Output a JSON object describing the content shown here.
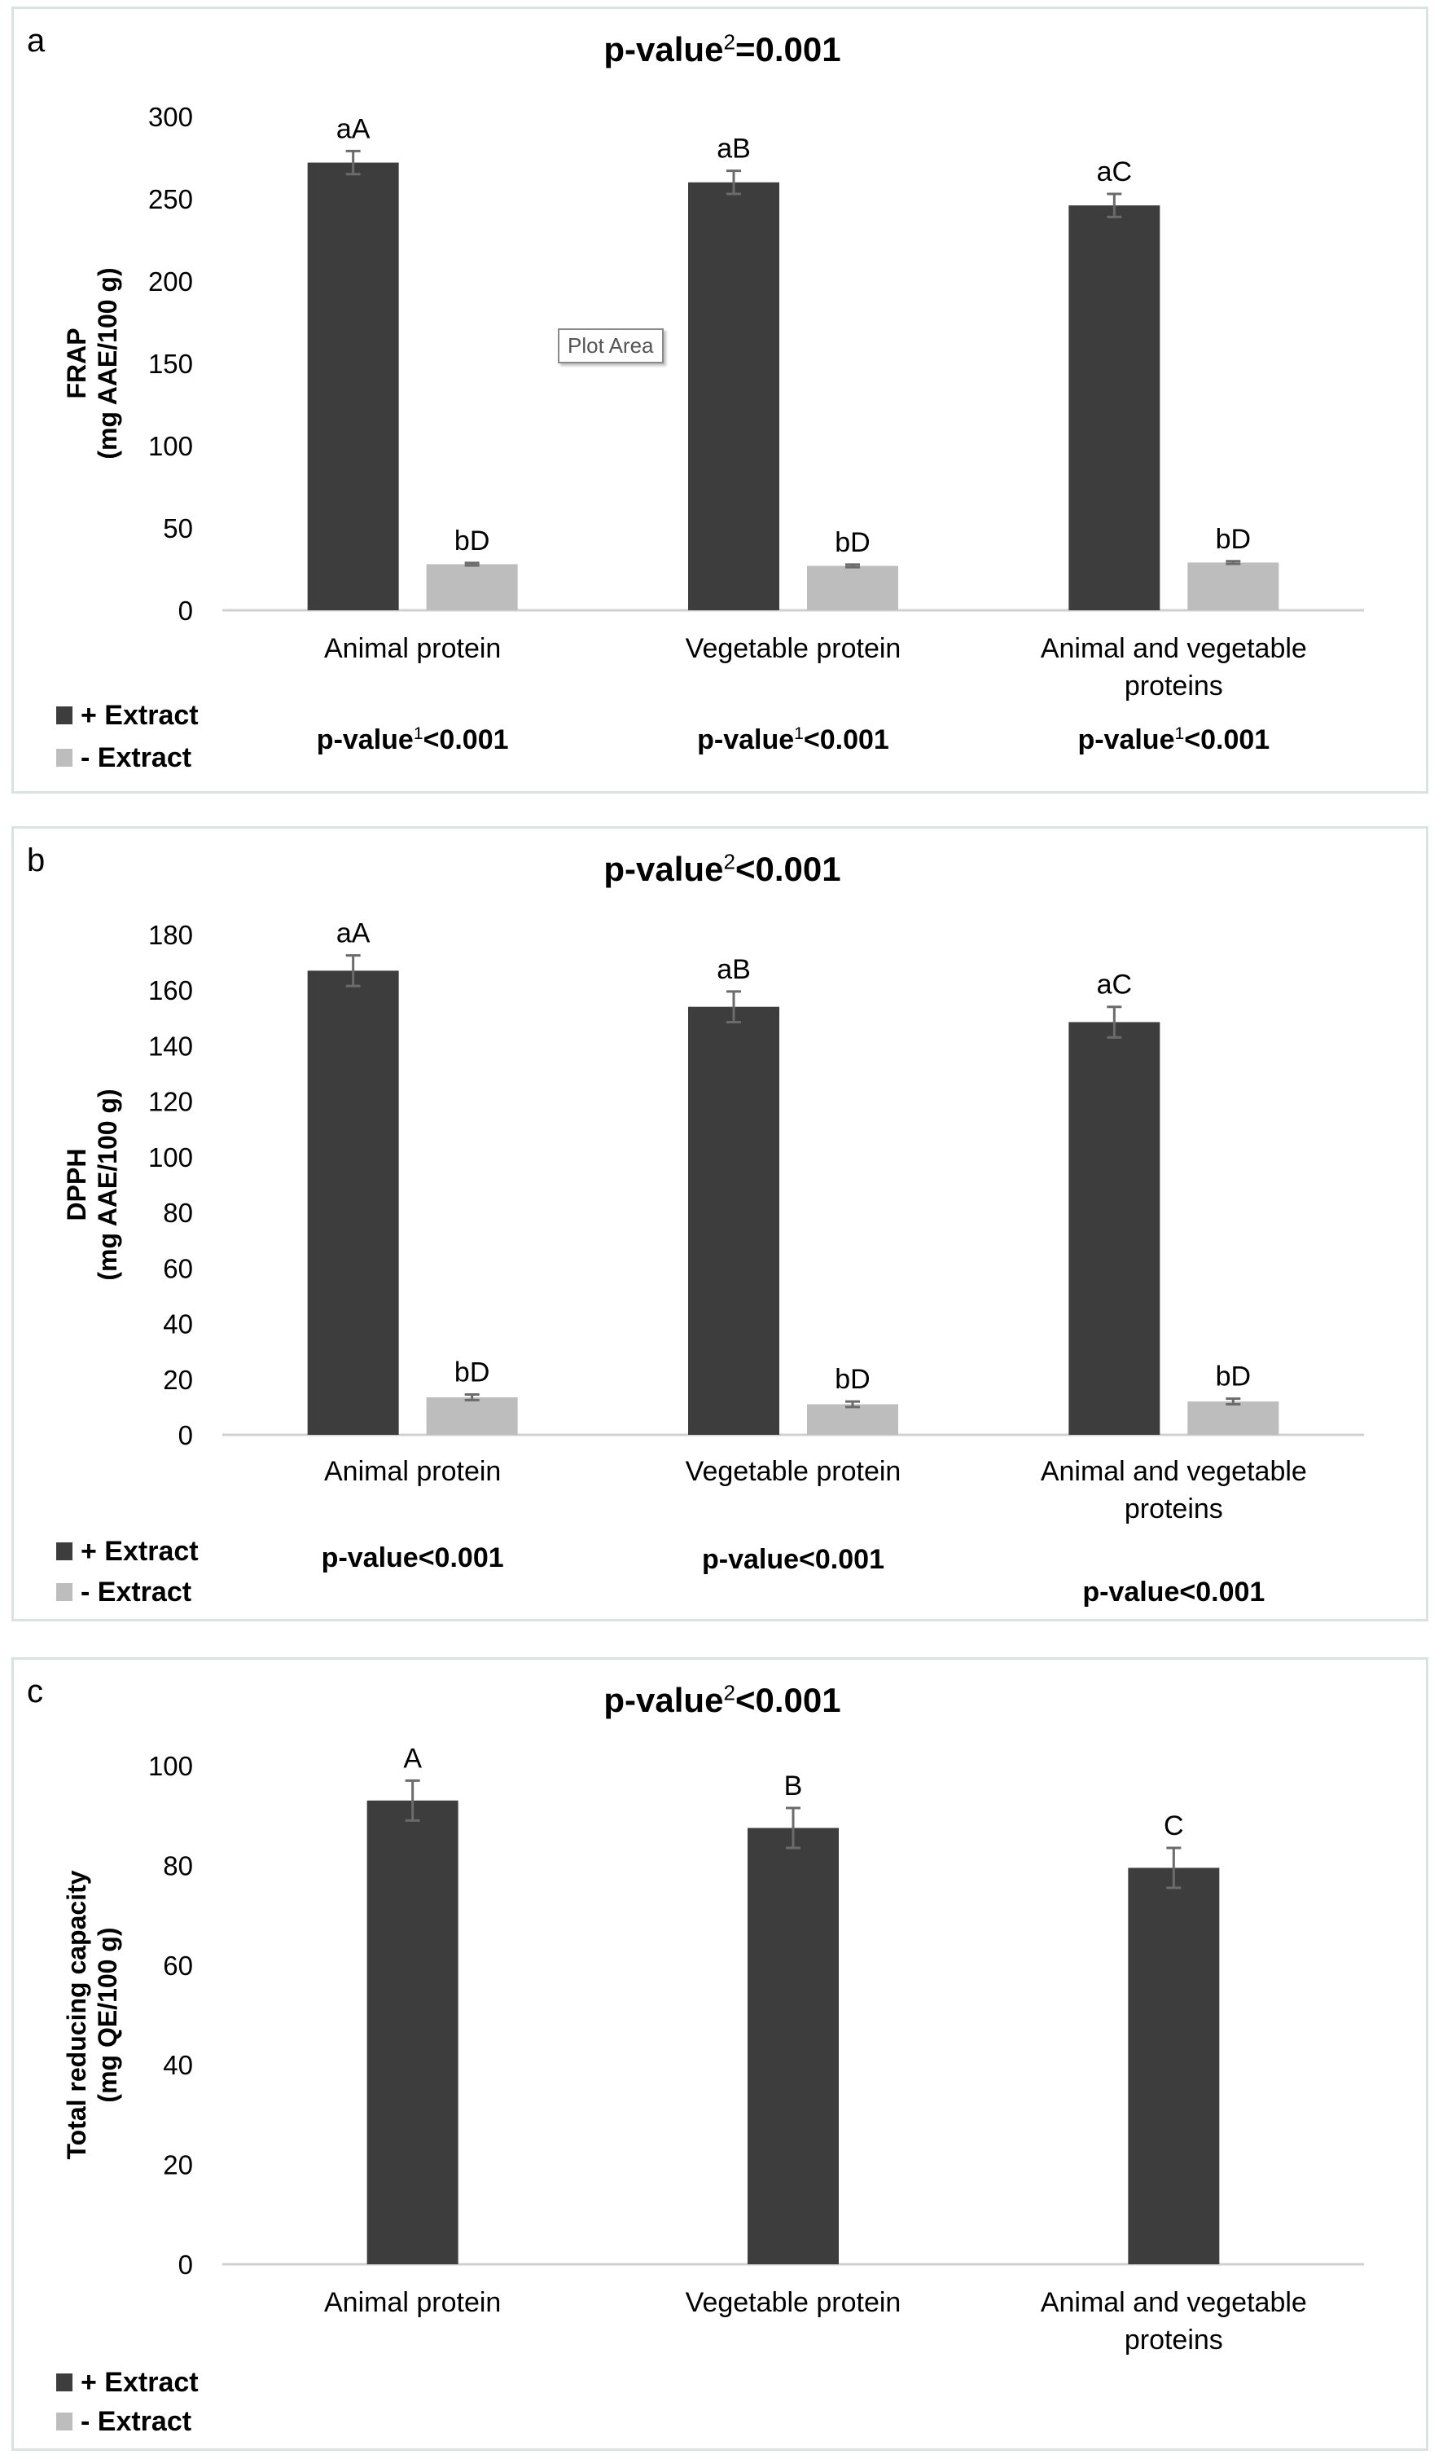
{
  "colors": {
    "extract_plus": "#3d3d3d",
    "extract_minus": "#bdbdbd",
    "error_bar": "#6b6b6b",
    "axis": "#d0d0d0",
    "border": "#d9e4e2"
  },
  "legend": {
    "plus": "+ Extract",
    "minus": "- Extract"
  },
  "tooltip": "Plot Area",
  "chart_data": [
    {
      "panel_label": "a",
      "type": "bar",
      "title_prefix": "p-value",
      "title_sup": "2",
      "title_suffix": "=0.001",
      "ylabel_line1": "FRAP",
      "ylabel_line2": "(mg AAE/100 g)",
      "ylim": [
        0,
        300
      ],
      "yticks": [
        0,
        50,
        100,
        150,
        200,
        250,
        300
      ],
      "categories": [
        [
          "Animal protein"
        ],
        [
          "Vegetable protein"
        ],
        [
          "Animal and vegetable",
          "proteins"
        ]
      ],
      "series": [
        {
          "key": "plus",
          "values": [
            272,
            260,
            246
          ],
          "errors": [
            7,
            7,
            7
          ],
          "labels": [
            "aA",
            "aB",
            "aC"
          ]
        },
        {
          "key": "minus",
          "values": [
            28,
            27,
            29
          ],
          "errors": [
            0.8,
            0.8,
            0.8
          ],
          "labels": [
            "bD",
            "bD",
            "bD"
          ]
        }
      ],
      "pvalues": [
        {
          "prefix": "p-value",
          "sup": "1",
          "suffix": "<0.001"
        },
        {
          "prefix": "p-value",
          "sup": "1",
          "suffix": "<0.001"
        },
        {
          "prefix": "p-value",
          "sup": "1",
          "suffix": "<0.001"
        }
      ]
    },
    {
      "panel_label": "b",
      "type": "bar",
      "title_prefix": "p-value",
      "title_sup": "2",
      "title_suffix": "<0.001",
      "ylabel_line1": "DPPH",
      "ylabel_line2": "(mg AAE/100 g)",
      "ylim": [
        0,
        180
      ],
      "yticks": [
        0,
        20,
        40,
        60,
        80,
        100,
        120,
        140,
        160,
        180
      ],
      "categories": [
        [
          "Animal protein"
        ],
        [
          "Vegetable protein"
        ],
        [
          "Animal and vegetable",
          "proteins"
        ]
      ],
      "series": [
        {
          "key": "plus",
          "values": [
            167,
            154,
            148.5
          ],
          "errors": [
            5.5,
            5.5,
            5.5
          ],
          "labels": [
            "aA",
            "aB",
            "aC"
          ]
        },
        {
          "key": "minus",
          "values": [
            13.5,
            11,
            12
          ],
          "errors": [
            1,
            1,
            1
          ],
          "labels": [
            "bD",
            "bD",
            "bD"
          ]
        }
      ],
      "pvalues": [
        {
          "prefix": "p-value",
          "sup": "",
          "suffix": "<0.001"
        },
        {
          "prefix": "p-value",
          "sup": "",
          "suffix": "<0.001"
        },
        {
          "prefix": "p-value",
          "sup": "",
          "suffix": "<0.001"
        }
      ]
    },
    {
      "panel_label": "c",
      "type": "bar",
      "title_prefix": "p-value",
      "title_sup": "2",
      "title_suffix": "<0.001",
      "ylabel_line1": "Total reducing capacity",
      "ylabel_line2": "(mg QE/100 g)",
      "ylim": [
        0,
        100
      ],
      "yticks": [
        0,
        20,
        40,
        60,
        80,
        100
      ],
      "categories": [
        [
          "Animal protein"
        ],
        [
          "Vegetable protein"
        ],
        [
          "Animal and vegetable",
          "proteins"
        ]
      ],
      "series": [
        {
          "key": "plus",
          "values": [
            93,
            87.5,
            79.5
          ],
          "errors": [
            4,
            4,
            4
          ],
          "labels": [
            "A",
            "B",
            "C"
          ]
        }
      ],
      "pvalues": []
    }
  ]
}
